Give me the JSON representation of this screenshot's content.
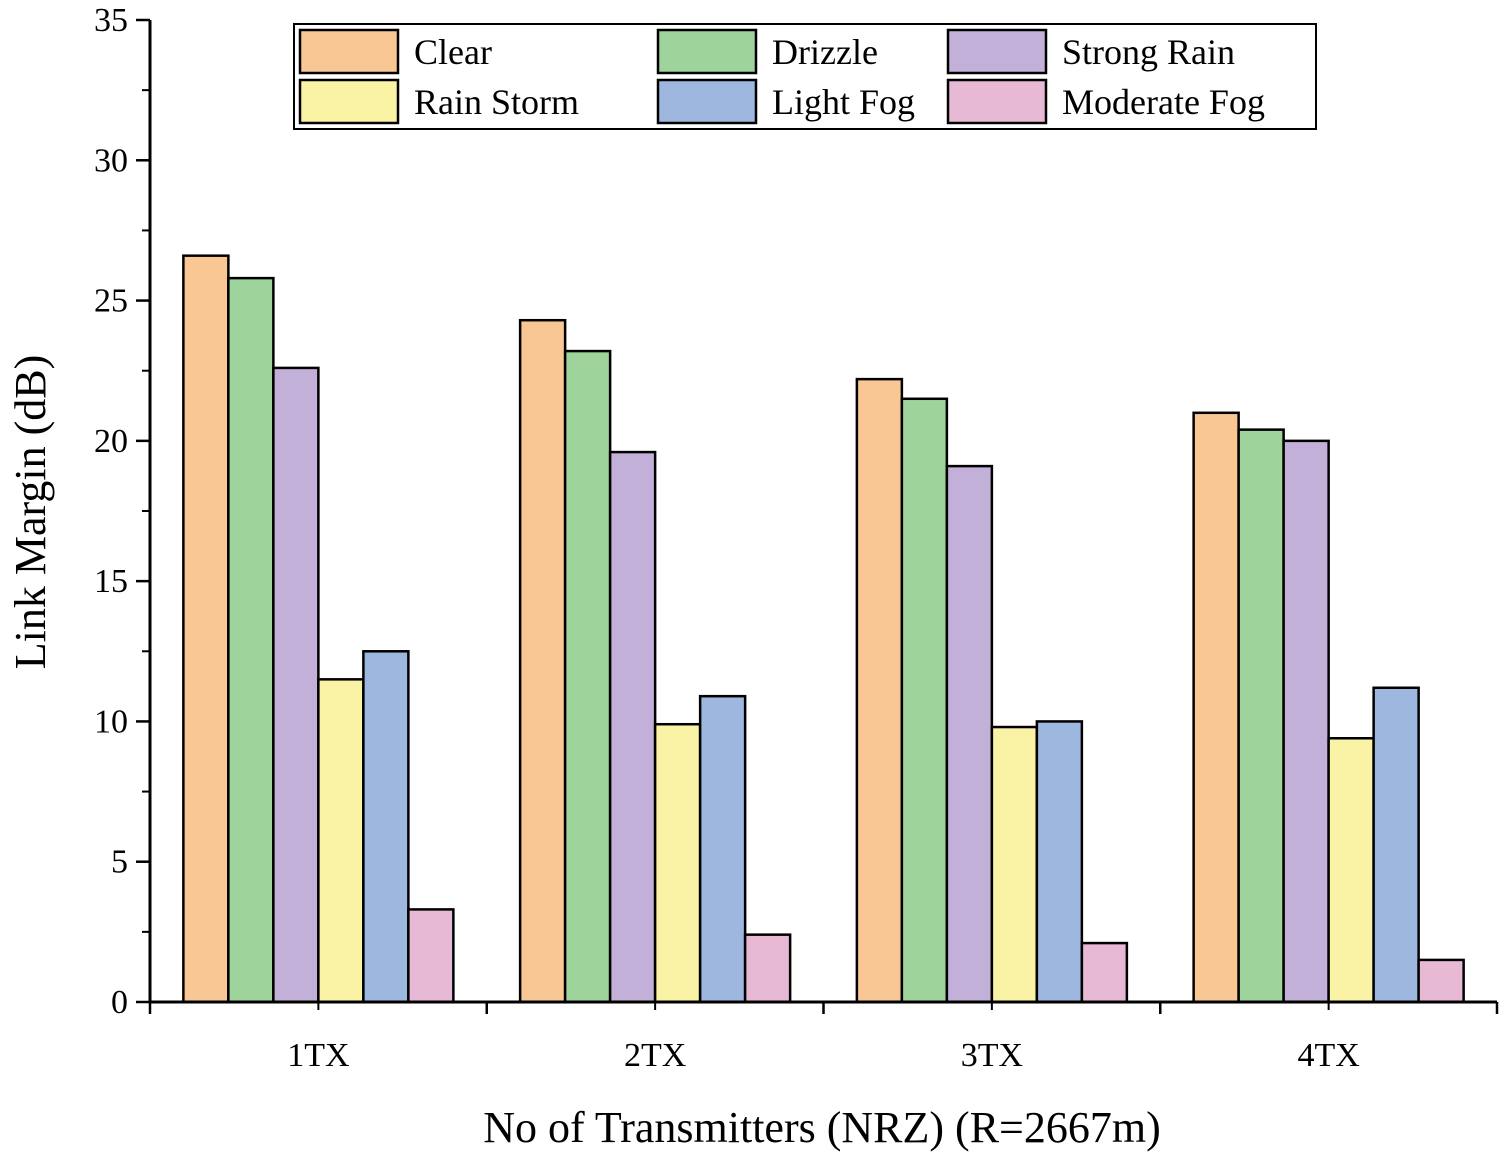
{
  "chart_data": {
    "type": "bar",
    "title": "",
    "xlabel": "No of Transmitters (NRZ) (R=2667m)",
    "ylabel": "Link Margin (dB)",
    "ylim": [
      0,
      35
    ],
    "yticks": [
      "0",
      "5",
      "10",
      "15",
      "20",
      "25",
      "30",
      "35"
    ],
    "categories": [
      "1TX",
      "2TX",
      "3TX",
      "4TX"
    ],
    "legend_position": "top-center",
    "series": [
      {
        "name": "Clear",
        "color": "#f9c793",
        "values": [
          26.6,
          24.3,
          22.2,
          21.0
        ]
      },
      {
        "name": "Drizzle",
        "color": "#9ed39b",
        "values": [
          25.8,
          23.2,
          21.5,
          20.4
        ]
      },
      {
        "name": "Strong Rain",
        "color": "#c2b0d8",
        "values": [
          22.6,
          19.6,
          19.1,
          20.0
        ]
      },
      {
        "name": "Rain Storm",
        "color": "#faf3a6",
        "values": [
          11.5,
          9.9,
          9.8,
          9.4
        ]
      },
      {
        "name": "Light Fog",
        "color": "#9db7de",
        "values": [
          12.5,
          10.9,
          10.0,
          11.2
        ]
      },
      {
        "name": "Moderate Fog",
        "color": "#e8b9d4",
        "values": [
          3.3,
          2.4,
          2.1,
          1.5
        ]
      }
    ]
  }
}
